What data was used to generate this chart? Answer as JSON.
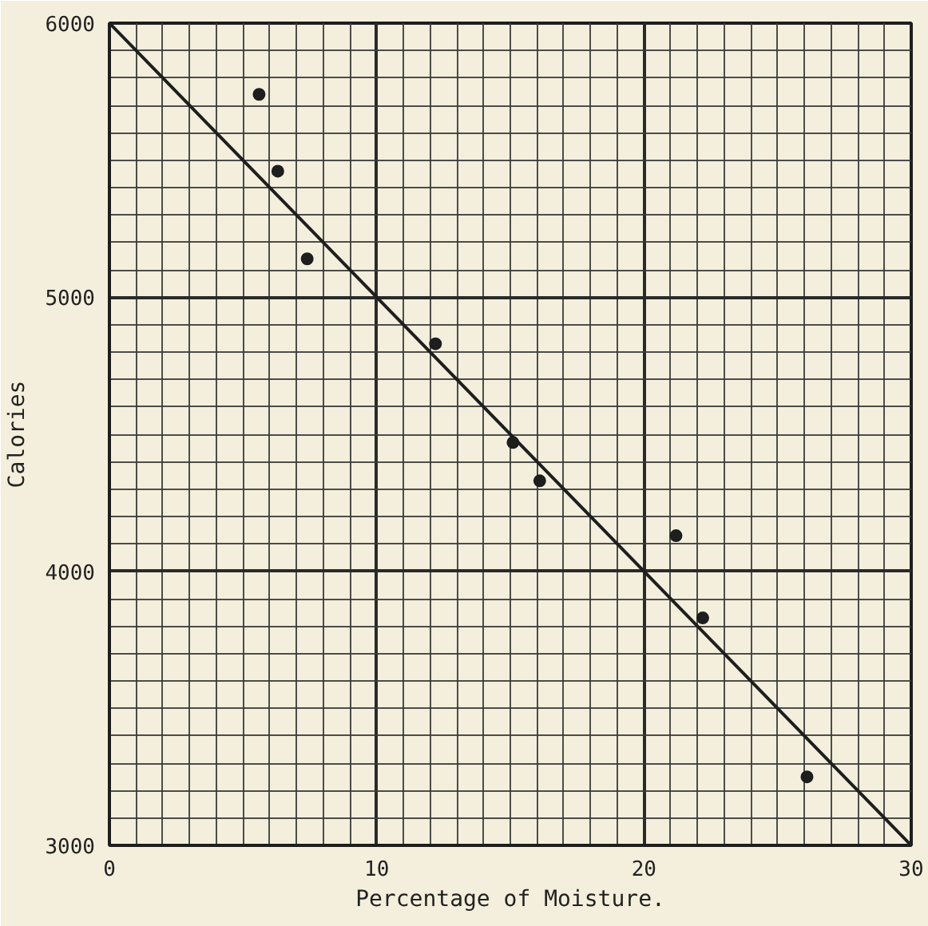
{
  "chart_data": {
    "type": "scatter",
    "xlabel": "Percentage of Moisture.",
    "ylabel": "Calories",
    "xlim": [
      0,
      30
    ],
    "ylim": [
      3000,
      6000
    ],
    "xticks": [
      0,
      10,
      20,
      30
    ],
    "yticks": [
      3000,
      4000,
      5000,
      6000
    ],
    "grid": true,
    "series": [
      {
        "marker": "circle",
        "color": "#1e1e1e",
        "x": [
          5.6,
          6.3,
          7.4,
          12.2,
          15.1,
          16.1,
          21.2,
          22.2,
          26.1
        ],
        "values": [
          5740,
          5460,
          5140,
          4830,
          4470,
          4330,
          4130,
          3830,
          3250
        ]
      },
      {
        "type": "line",
        "color": "#1e1e1e",
        "line_style": "solid",
        "x": [
          0,
          30
        ],
        "values": [
          6000,
          3000
        ]
      }
    ]
  }
}
